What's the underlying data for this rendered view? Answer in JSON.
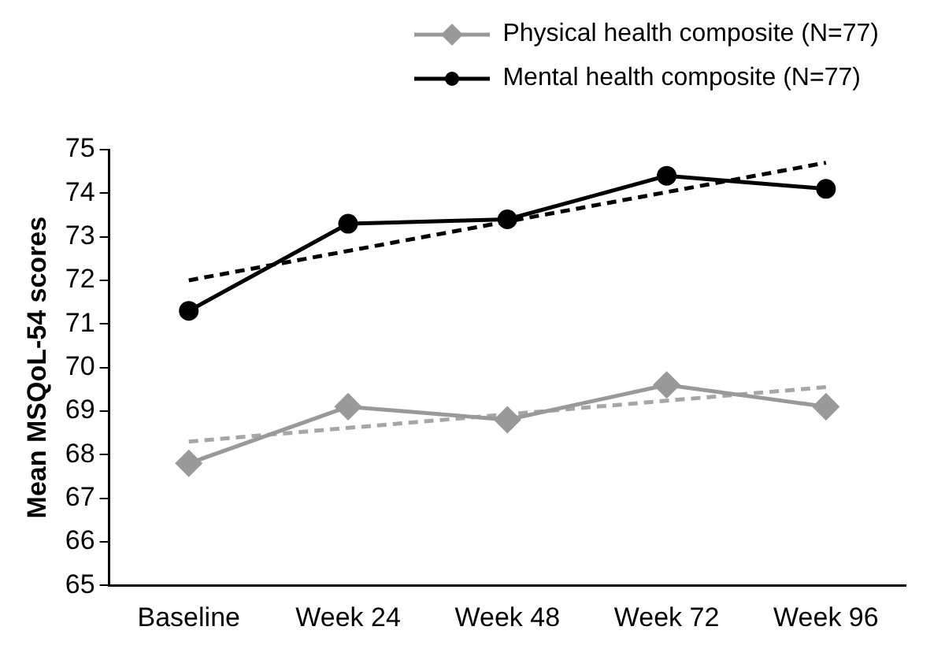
{
  "chart_data": {
    "type": "line",
    "ylabel": "Mean MSQoL-54 scores",
    "categories": [
      "Baseline",
      "Week 24",
      "Week 48",
      "Week 72",
      "Week 96"
    ],
    "series": [
      {
        "name": "Physical health composite (N=77)",
        "color": "#999999",
        "marker": "diamond",
        "values": [
          67.8,
          69.1,
          68.8,
          69.6,
          69.1
        ]
      },
      {
        "name": "Mental health composite (N=77)",
        "color": "#000000",
        "marker": "circle",
        "values": [
          71.3,
          73.3,
          73.4,
          74.4,
          74.1
        ]
      },
      {
        "color": "#a6a6a6",
        "marker": "none",
        "line_style": "dashed",
        "x": [
          "Baseline",
          "Week 96"
        ],
        "values": [
          68.3,
          69.55
        ]
      },
      {
        "color": "#000000",
        "marker": "none",
        "line_style": "dashed",
        "x": [
          "Baseline",
          "Week 96"
        ],
        "values": [
          72.0,
          74.7
        ]
      }
    ],
    "ylim": [
      65,
      75
    ],
    "yticks": [
      65,
      66,
      67,
      68,
      69,
      70,
      71,
      72,
      73,
      74,
      75
    ],
    "grid": false,
    "legend": "top right"
  }
}
